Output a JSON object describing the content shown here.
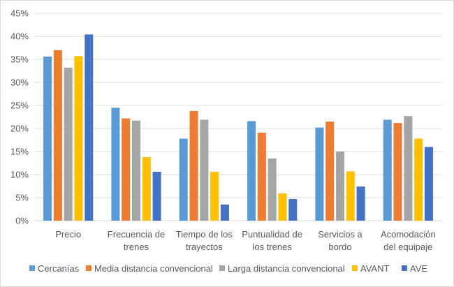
{
  "chart_data": {
    "type": "bar",
    "title": "",
    "xlabel": "",
    "ylabel": "",
    "ylim": [
      0,
      45
    ],
    "yticks": [
      "0%",
      "5%",
      "10%",
      "15%",
      "20%",
      "25%",
      "30%",
      "35%",
      "40%",
      "45%"
    ],
    "grid": "horizontal",
    "legend_position": "bottom",
    "categories": [
      [
        "Precio"
      ],
      [
        "Frecuencia de",
        "trenes"
      ],
      [
        "Tiempo de los",
        "trayectos"
      ],
      [
        "Puntualidad de",
        "los trenes"
      ],
      [
        "Servicios a",
        "bordo"
      ],
      [
        "Acomodación",
        "del equipaje"
      ]
    ],
    "series": [
      {
        "name": "Cercanías",
        "color": "#5b9bd5",
        "values": [
          35.6,
          24.5,
          17.8,
          21.6,
          20.2,
          21.9
        ]
      },
      {
        "name": "Media distancia convencional",
        "color": "#ed7d31",
        "values": [
          37.0,
          22.2,
          23.8,
          19.1,
          21.5,
          21.2
        ]
      },
      {
        "name": "Larga distancia convencional",
        "color": "#a5a5a5",
        "values": [
          33.2,
          21.7,
          21.9,
          13.5,
          15.0,
          22.7
        ]
      },
      {
        "name": "AVANT",
        "color": "#ffc000",
        "values": [
          35.7,
          13.8,
          10.6,
          5.9,
          10.7,
          17.8
        ]
      },
      {
        "name": "AVE",
        "color": "#4472c4",
        "values": [
          40.4,
          10.6,
          3.5,
          4.7,
          7.4,
          16.0
        ]
      }
    ]
  }
}
